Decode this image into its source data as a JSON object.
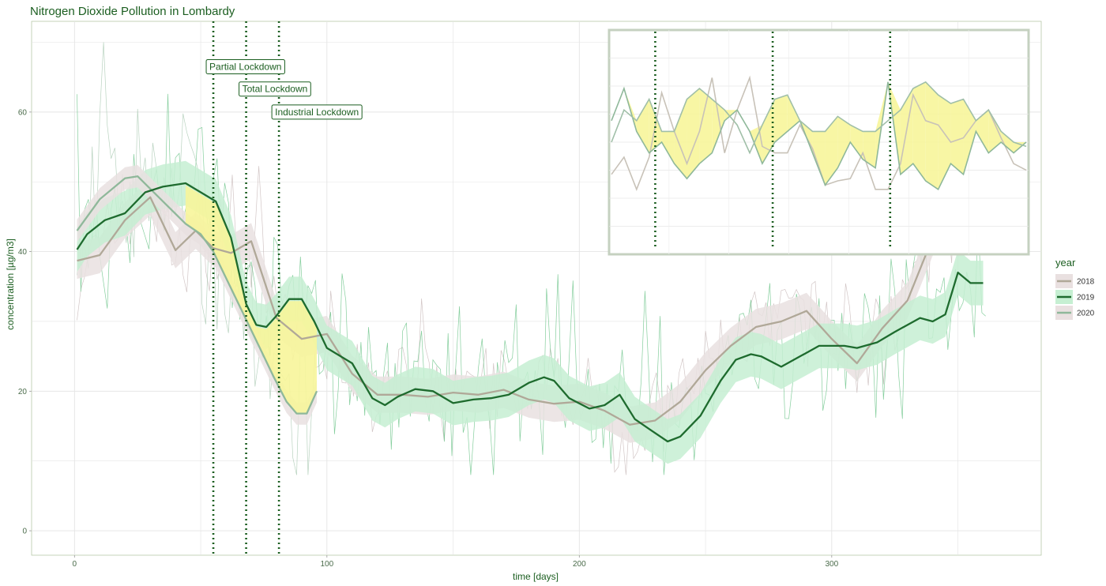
{
  "chart_data": {
    "type": "line",
    "title": "Nitrogen Dioxide Pollution in Lombardy",
    "xlabel": "time [days]",
    "ylabel": "concentration [µg/m3]",
    "xlim": [
      -17,
      383
    ],
    "ylim": [
      -3.5,
      73
    ],
    "x_ticks": [
      0,
      100,
      200,
      300
    ],
    "y_ticks": [
      0,
      20,
      40,
      60
    ],
    "grid": true,
    "legend": {
      "title": "year",
      "position": "right",
      "entries": [
        {
          "label": "2018",
          "color": "#b0a898"
        },
        {
          "label": "2019",
          "color": "#1e6b2e"
        },
        {
          "label": "2020",
          "color": "#8fb89a"
        }
      ]
    },
    "colors": {
      "s2018": "#b0a898",
      "s2018_band": "#e9e0e0",
      "s2019": "#1e6b2e",
      "s2019_band": "#c6efd2",
      "s2020": "#8fb89a",
      "highlight": "#f7f59a",
      "raw2018": "#c7b8b8",
      "raw2019": "#66c285",
      "raw2020": "#a8c8b0",
      "annotation": "#1b5e20"
    },
    "annotations": [
      {
        "label": "Partial Lockdown",
        "day": 55,
        "label_y": 66.5
      },
      {
        "label": "Total Lockdown",
        "day": 68,
        "label_y": 63.3
      },
      {
        "label": "Industrial Lockdown",
        "day": 81,
        "label_y": 60.0
      }
    ],
    "series": [
      {
        "name": "2018",
        "role": "smoothed",
        "band_width": 2.6,
        "x": [
          1,
          10,
          20,
          30,
          40,
          48,
          55,
          62,
          70,
          80,
          90,
          100,
          110,
          120,
          130,
          140,
          150,
          160,
          170,
          180,
          190,
          200,
          210,
          220,
          230,
          240,
          250,
          260,
          270,
          280,
          290,
          300,
          310,
          320,
          330,
          340,
          350,
          360
        ],
        "y": [
          38.7,
          39.5,
          44.5,
          47.8,
          40.2,
          43.0,
          40.5,
          39.8,
          41.5,
          30.5,
          27.5,
          28.2,
          22.5,
          19.5,
          19.5,
          19.2,
          19.8,
          19.5,
          20.2,
          18.8,
          18.2,
          18.5,
          17.2,
          15.2,
          15.8,
          18.5,
          23.0,
          26.5,
          29.2,
          30.0,
          31.5,
          27.5,
          24.0,
          29.0,
          33.0,
          42.0,
          48.0,
          43.0
        ]
      },
      {
        "name": "2019",
        "role": "smoothed",
        "band_width": 3.2,
        "x": [
          1,
          5,
          12,
          20,
          28,
          35,
          44,
          50,
          56,
          62,
          68,
          72,
          76,
          80,
          85,
          90,
          95,
          100,
          110,
          118,
          123,
          128,
          135,
          142,
          150,
          158,
          165,
          172,
          180,
          186,
          190,
          196,
          204,
          210,
          216,
          222,
          228,
          235,
          240,
          248,
          256,
          262,
          268,
          272,
          280,
          290,
          295,
          305,
          310,
          318,
          325,
          335,
          340,
          345,
          350,
          355,
          360
        ],
        "y": [
          40.3,
          42.5,
          44.5,
          45.5,
          48.5,
          49.3,
          49.8,
          48.5,
          47.2,
          42.0,
          32.5,
          29.5,
          29.2,
          30.8,
          33.2,
          33.2,
          30.0,
          26.2,
          24.0,
          19.0,
          18.0,
          19.2,
          20.3,
          20.0,
          18.3,
          18.8,
          19.0,
          19.5,
          21.2,
          22.0,
          21.5,
          19.0,
          17.5,
          18.0,
          19.5,
          16.0,
          14.5,
          12.8,
          13.5,
          16.5,
          21.5,
          24.5,
          25.3,
          25.0,
          23.5,
          25.5,
          26.5,
          26.5,
          26.2,
          27.0,
          28.5,
          30.5,
          30.0,
          31.0,
          37.0,
          35.5,
          35.5
        ]
      },
      {
        "name": "2020",
        "role": "smoothed",
        "band_width": 1.6,
        "x": [
          1,
          10,
          20,
          25,
          30,
          37,
          44,
          50,
          55,
          61,
          67,
          73,
          79,
          84,
          88,
          92,
          96
        ],
        "y": [
          43.0,
          47.5,
          50.5,
          50.8,
          49.0,
          46.5,
          44.0,
          42.5,
          40.0,
          35.5,
          31.0,
          26.5,
          22.0,
          18.5,
          16.8,
          16.8,
          20.0
        ]
      }
    ],
    "inset": {
      "type": "line",
      "description_hidden": true,
      "vlines_x_fraction": [
        0.11,
        0.39,
        0.67
      ],
      "series": [
        {
          "name": "2018",
          "color": "#c8c2b8",
          "y": [
            0.35,
            0.43,
            0.28,
            0.43,
            0.73,
            0.55,
            0.4,
            0.55,
            0.8,
            0.45,
            0.65,
            0.8,
            0.48,
            0.45,
            0.45,
            0.58,
            0.47,
            0.3,
            0.32,
            0.33,
            0.45,
            0.28,
            0.28,
            0.4,
            0.72,
            0.6,
            0.58,
            0.5,
            0.52,
            0.6,
            0.65,
            0.52,
            0.4,
            0.37
          ]
        },
        {
          "name": "2019",
          "color": "#8fb89a",
          "y": [
            0.6,
            0.75,
            0.55,
            0.45,
            0.5,
            0.4,
            0.33,
            0.4,
            0.45,
            0.6,
            0.65,
            0.55,
            0.4,
            0.5,
            0.55,
            0.6,
            0.45,
            0.3,
            0.38,
            0.5,
            0.42,
            0.38,
            0.78,
            0.35,
            0.4,
            0.32,
            0.28,
            0.4,
            0.35,
            0.55,
            0.45,
            0.5,
            0.45,
            0.5
          ]
        },
        {
          "name": "2020",
          "color": "#a0bfa8",
          "y": [
            0.5,
            0.65,
            0.6,
            0.7,
            0.55,
            0.55,
            0.7,
            0.75,
            0.7,
            0.65,
            0.58,
            0.45,
            0.58,
            0.7,
            0.72,
            0.6,
            0.55,
            0.55,
            0.62,
            0.58,
            0.55,
            0.55,
            0.6,
            0.65,
            0.75,
            0.78,
            0.72,
            0.68,
            0.7,
            0.6,
            0.65,
            0.55,
            0.5,
            0.48
          ]
        }
      ]
    }
  }
}
